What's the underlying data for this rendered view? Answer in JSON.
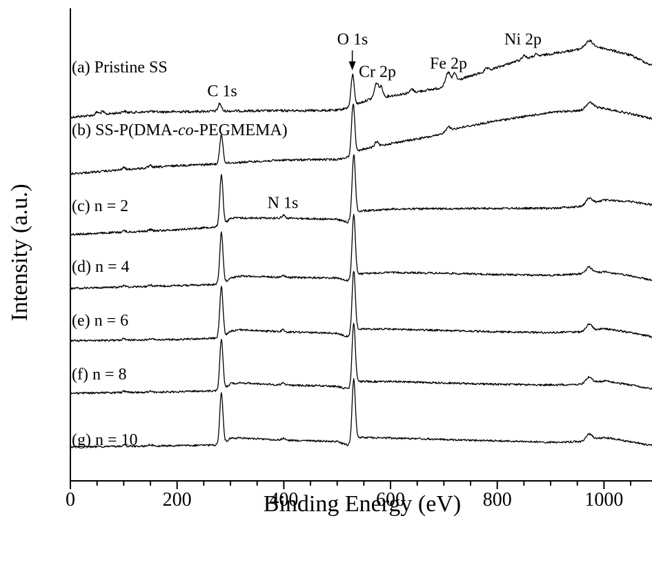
{
  "chart_data": {
    "type": "line",
    "title": "",
    "xlabel": "Binding Energy (eV)",
    "ylabel": "Intensity (a.u.)",
    "xlim": [
      0,
      1090
    ],
    "xticks": [
      0,
      200,
      400,
      600,
      800,
      1000
    ],
    "x_major_step": 200,
    "x_minor_step": 50,
    "y_ticks_shown": false,
    "grid": false,
    "legend": "none",
    "line_color": "#000000",
    "series": [
      {
        "name": "(a) Pristine SS",
        "baseline": [
          [
            0,
            170
          ],
          [
            100,
            163
          ],
          [
            280,
            161
          ],
          [
            500,
            160
          ],
          [
            520,
            156
          ],
          [
            540,
            150
          ],
          [
            560,
            144
          ],
          [
            600,
            139
          ],
          [
            690,
            128
          ],
          [
            710,
            120
          ],
          [
            780,
            103
          ],
          [
            850,
            85
          ],
          [
            900,
            78
          ],
          [
            950,
            72
          ],
          [
            975,
            67
          ],
          [
            1000,
            70
          ],
          [
            1050,
            80
          ],
          [
            1090,
            95
          ]
        ],
        "peaks": [
          {
            "x": 50,
            "h": 4,
            "w": 3
          },
          {
            "x": 60,
            "h": 4,
            "w": 3
          },
          {
            "x": 100,
            "h": 2,
            "w": 3
          },
          {
            "x": 150,
            "h": 2,
            "w": 3
          },
          {
            "x": 280,
            "h": 11,
            "w": 3
          },
          {
            "x": 529,
            "h": 45,
            "w": 3
          },
          {
            "x": 574,
            "h": 22,
            "w": 4
          },
          {
            "x": 583,
            "h": 14,
            "w": 3
          },
          {
            "x": 640,
            "h": 5,
            "w": 3
          },
          {
            "x": 708,
            "h": 16,
            "w": 4
          },
          {
            "x": 720,
            "h": 12,
            "w": 3
          },
          {
            "x": 780,
            "h": 4,
            "w": 3
          },
          {
            "x": 850,
            "h": 5,
            "w": 3
          },
          {
            "x": 872,
            "h": 3,
            "w": 3
          },
          {
            "x": 972,
            "h": 8,
            "w": 7
          }
        ],
        "noise": 1.8
      },
      {
        "name": "(b) SS-P(DMA-co-PEGMEMA)",
        "baseline": [
          [
            0,
            252
          ],
          [
            100,
            246
          ],
          [
            200,
            240
          ],
          [
            270,
            238
          ],
          [
            300,
            236
          ],
          [
            400,
            232
          ],
          [
            500,
            231
          ],
          [
            520,
            228
          ],
          [
            530,
            222
          ],
          [
            550,
            216
          ],
          [
            600,
            208
          ],
          [
            690,
            196
          ],
          [
            710,
            188
          ],
          [
            800,
            175
          ],
          [
            900,
            163
          ],
          [
            960,
            160
          ],
          [
            975,
            155
          ],
          [
            1000,
            157
          ],
          [
            1050,
            165
          ],
          [
            1090,
            172
          ]
        ],
        "peaks": [
          {
            "x": 100,
            "h": 3,
            "w": 3
          },
          {
            "x": 150,
            "h": 3,
            "w": 3
          },
          {
            "x": 283,
            "h": 42,
            "w": 3
          },
          {
            "x": 530,
            "h": 72,
            "w": 3
          },
          {
            "x": 574,
            "h": 7,
            "w": 3
          },
          {
            "x": 708,
            "h": 6,
            "w": 3
          },
          {
            "x": 972,
            "h": 7,
            "w": 7
          }
        ],
        "noise": 1.6
      },
      {
        "name": "(c) n = 2",
        "baseline": [
          [
            0,
            340
          ],
          [
            200,
            333
          ],
          [
            285,
            328
          ],
          [
            300,
            316
          ],
          [
            320,
            316
          ],
          [
            400,
            316
          ],
          [
            500,
            318
          ],
          [
            520,
            322
          ],
          [
            540,
            306
          ],
          [
            600,
            303
          ],
          [
            800,
            302
          ],
          [
            900,
            302
          ],
          [
            960,
            299
          ],
          [
            1000,
            290
          ],
          [
            1050,
            292
          ],
          [
            1090,
            297
          ]
        ],
        "peaks": [
          {
            "x": 100,
            "h": 2,
            "w": 3
          },
          {
            "x": 150,
            "h": 2,
            "w": 3
          },
          {
            "x": 283,
            "h": 75,
            "w": 3
          },
          {
            "x": 399,
            "h": 4,
            "w": 3
          },
          {
            "x": 531,
            "h": 90,
            "w": 3
          },
          {
            "x": 972,
            "h": 9,
            "w": 6
          }
        ],
        "noise": 1.5
      },
      {
        "name": "(d) n = 4",
        "baseline": [
          [
            0,
            418
          ],
          [
            200,
            414
          ],
          [
            285,
            412
          ],
          [
            300,
            403
          ],
          [
            320,
            400
          ],
          [
            400,
            402
          ],
          [
            500,
            403
          ],
          [
            520,
            407
          ],
          [
            540,
            397
          ],
          [
            600,
            395
          ],
          [
            700,
            396
          ],
          [
            800,
            398
          ],
          [
            900,
            399
          ],
          [
            960,
            397
          ],
          [
            1000,
            394
          ],
          [
            1050,
            400
          ],
          [
            1090,
            406
          ]
        ],
        "peaks": [
          {
            "x": 100,
            "h": 2,
            "w": 3
          },
          {
            "x": 150,
            "h": 2,
            "w": 3
          },
          {
            "x": 283,
            "h": 75,
            "w": 3
          },
          {
            "x": 399,
            "h": 3,
            "w": 3
          },
          {
            "x": 531,
            "h": 90,
            "w": 3
          },
          {
            "x": 972,
            "h": 9,
            "w": 6
          }
        ],
        "noise": 1.4
      },
      {
        "name": "(e) n = 6",
        "baseline": [
          [
            0,
            494
          ],
          [
            200,
            492
          ],
          [
            285,
            490
          ],
          [
            300,
            480
          ],
          [
            320,
            478
          ],
          [
            400,
            481
          ],
          [
            500,
            483
          ],
          [
            520,
            488
          ],
          [
            540,
            477
          ],
          [
            600,
            477
          ],
          [
            700,
            479
          ],
          [
            800,
            481
          ],
          [
            900,
            482
          ],
          [
            960,
            481
          ],
          [
            1000,
            476
          ],
          [
            1050,
            482
          ],
          [
            1090,
            488
          ]
        ],
        "peaks": [
          {
            "x": 100,
            "h": 2,
            "w": 3
          },
          {
            "x": 150,
            "h": 2,
            "w": 3
          },
          {
            "x": 283,
            "h": 75,
            "w": 3
          },
          {
            "x": 399,
            "h": 3,
            "w": 3
          },
          {
            "x": 531,
            "h": 90,
            "w": 3
          },
          {
            "x": 972,
            "h": 9,
            "w": 6
          }
        ],
        "noise": 1.4
      },
      {
        "name": "(f) n = 8",
        "baseline": [
          [
            0,
            570
          ],
          [
            200,
            568
          ],
          [
            285,
            566
          ],
          [
            300,
            556
          ],
          [
            320,
            555
          ],
          [
            400,
            558
          ],
          [
            500,
            560
          ],
          [
            520,
            564
          ],
          [
            540,
            553
          ],
          [
            600,
            553
          ],
          [
            700,
            555
          ],
          [
            800,
            557
          ],
          [
            900,
            558
          ],
          [
            960,
            557
          ],
          [
            1000,
            552
          ],
          [
            1050,
            558
          ],
          [
            1090,
            564
          ]
        ],
        "peaks": [
          {
            "x": 100,
            "h": 2,
            "w": 3
          },
          {
            "x": 150,
            "h": 2,
            "w": 3
          },
          {
            "x": 283,
            "h": 75,
            "w": 3
          },
          {
            "x": 399,
            "h": 3,
            "w": 3
          },
          {
            "x": 531,
            "h": 90,
            "w": 3
          },
          {
            "x": 972,
            "h": 9,
            "w": 6
          }
        ],
        "noise": 1.4
      },
      {
        "name": "(g) n = 10",
        "baseline": [
          [
            0,
            648
          ],
          [
            200,
            646
          ],
          [
            285,
            645
          ],
          [
            300,
            635
          ],
          [
            320,
            635
          ],
          [
            400,
            638
          ],
          [
            500,
            640
          ],
          [
            520,
            645
          ],
          [
            540,
            634
          ],
          [
            600,
            635
          ],
          [
            700,
            637
          ],
          [
            800,
            639
          ],
          [
            900,
            641
          ],
          [
            960,
            640
          ],
          [
            1000,
            634
          ],
          [
            1050,
            640
          ],
          [
            1090,
            646
          ]
        ],
        "peaks": [
          {
            "x": 100,
            "h": 2,
            "w": 3
          },
          {
            "x": 150,
            "h": 2,
            "w": 3
          },
          {
            "x": 283,
            "h": 75,
            "w": 3
          },
          {
            "x": 399,
            "h": 3,
            "w": 3
          },
          {
            "x": 531,
            "h": 90,
            "w": 3
          },
          {
            "x": 972,
            "h": 9,
            "w": 6
          }
        ],
        "noise": 1.4
      }
    ],
    "annotations": [
      {
        "text": "C 1s",
        "x": 285
      },
      {
        "text": "N 1s",
        "x": 395
      },
      {
        "text": "O 1s",
        "x": 529,
        "arrow": true
      },
      {
        "text": "Cr 2p",
        "x": 578
      },
      {
        "text": "Fe 2p",
        "x": 706
      },
      {
        "text": "Ni 2p",
        "x": 848
      }
    ],
    "label_parts": [
      [
        {
          "t": "(a) Pristine SS",
          "i": false
        }
      ],
      [
        {
          "t": "(b) SS-P(DMA-",
          "i": false
        },
        {
          "t": "co",
          "i": true
        },
        {
          "t": "-PEGMEMA)",
          "i": false
        }
      ],
      [
        {
          "t": "(c) n = 2",
          "i": false
        }
      ],
      [
        {
          "t": "(d) n = 4",
          "i": false
        }
      ],
      [
        {
          "t": "(e) n = 6",
          "i": false
        }
      ],
      [
        {
          "t": "(f) n = 8",
          "i": false
        }
      ],
      [
        {
          "t": "(g) n = 10",
          "i": false
        }
      ]
    ]
  }
}
